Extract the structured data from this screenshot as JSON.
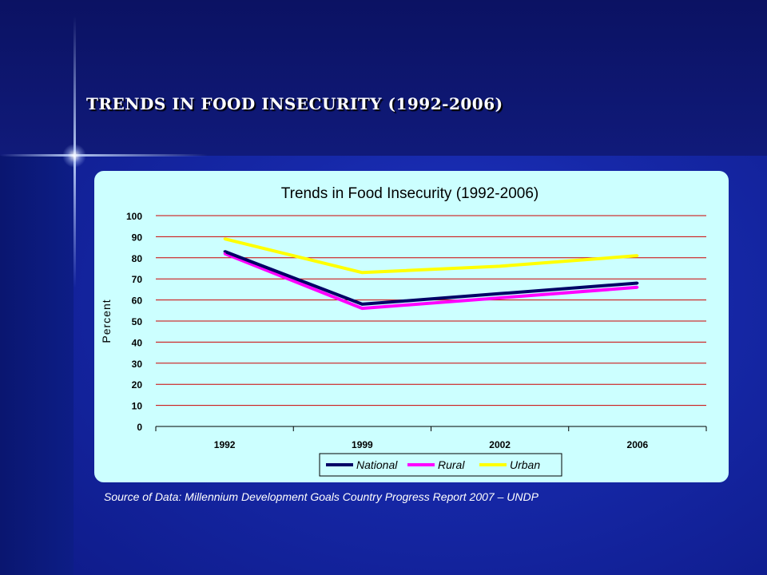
{
  "slide": {
    "title": "TRENDS IN FOOD INSECURITY (1992-2006)",
    "source": "Source of Data: Millennium Development Goals Country Progress Report 2007 – UNDP"
  },
  "colors": {
    "background": "#1628a8",
    "panel": "#ccffff",
    "gridline": "#cc0000",
    "national": "#000066",
    "rural": "#ff00ff",
    "urban": "#ffff00"
  },
  "chart_data": {
    "type": "line",
    "title": "Trends in Food Insecurity (1992-2006)",
    "xlabel": "",
    "ylabel": "Percent",
    "categories": [
      "1992",
      "1999",
      "2002",
      "2006"
    ],
    "ylim": [
      0,
      100
    ],
    "yticks": [
      "0",
      "10",
      "20",
      "30",
      "40",
      "50",
      "60",
      "70",
      "80",
      "90",
      "100"
    ],
    "grid": true,
    "legend_position": "bottom",
    "series": [
      {
        "name": "National",
        "values": [
          83,
          58,
          63,
          68
        ],
        "color": "#000066"
      },
      {
        "name": "Rural",
        "values": [
          82,
          56,
          61,
          66
        ],
        "color": "#ff00ff"
      },
      {
        "name": "Urban",
        "values": [
          89,
          73,
          76,
          81
        ],
        "color": "#ffff00"
      }
    ]
  }
}
